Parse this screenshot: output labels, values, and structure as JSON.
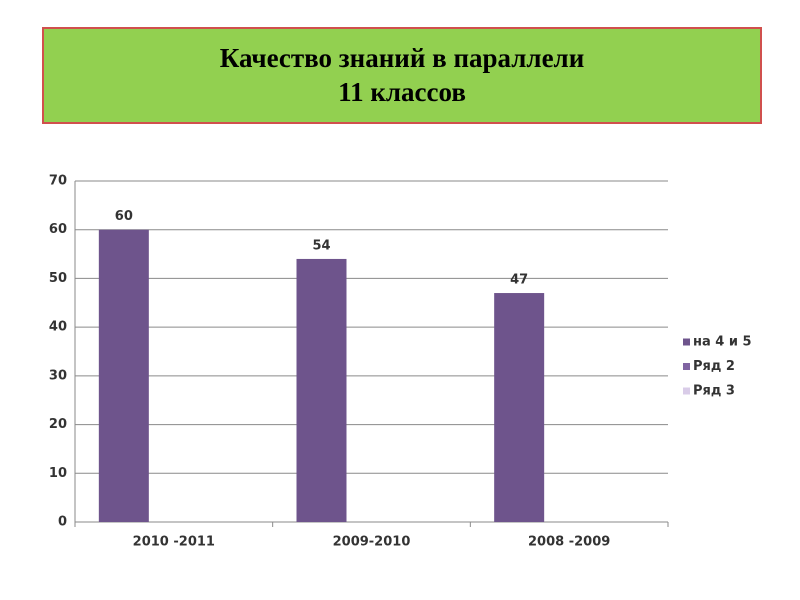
{
  "chart_data": {
    "type": "bar",
    "title": "Качество знаний в параллели\n11 классов",
    "categories": [
      "2010 -2011",
      "2009-2010",
      "2008 -2009"
    ],
    "series": [
      {
        "name": "на 4 и 5",
        "color": "#6e548c",
        "values": [
          60,
          54,
          47
        ]
      },
      {
        "name": "Ряд 2",
        "color": "#8064a2",
        "values": [
          null,
          null,
          null
        ]
      },
      {
        "name": "Ряд 3",
        "color": "#d9cce8",
        "values": [
          null,
          null,
          null
        ]
      }
    ],
    "ylim": [
      0,
      70
    ],
    "yticks": [
      0,
      10,
      20,
      30,
      40,
      50,
      60,
      70
    ],
    "grid": true,
    "legend": "right"
  }
}
